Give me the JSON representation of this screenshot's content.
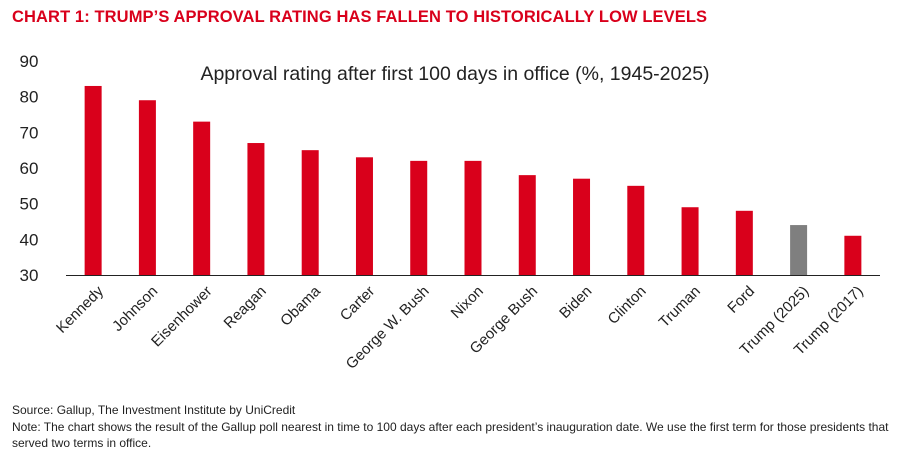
{
  "heading": "CHART 1: TRUMP’S APPROVAL RATING HAS FALLEN TO HISTORICALLY LOW LEVELS",
  "colors": {
    "accent": "#d9001b",
    "highlight": "#7f7f7f",
    "axis": "#222222"
  },
  "chart_data": {
    "type": "bar",
    "title": "Approval rating after first 100 days in office (%, 1945-2025)",
    "xlabel": "",
    "ylabel": "",
    "ylim": [
      30,
      90
    ],
    "yticks": [
      30,
      40,
      50,
      60,
      70,
      80,
      90
    ],
    "grid": false,
    "categories": [
      "Kennedy",
      "Johnson",
      "Eisenhower",
      "Reagan",
      "Obama",
      "Carter",
      "George W. Bush",
      "Nixon",
      "George Bush",
      "Biden",
      "Clinton",
      "Truman",
      "Ford",
      "Trump (2025)",
      "Trump (2017)"
    ],
    "values": [
      83,
      79,
      73,
      67,
      65,
      63,
      62,
      62,
      58,
      57,
      55,
      49,
      48,
      44,
      41
    ],
    "highlighted_category": "Trump (2025)"
  },
  "footer": {
    "source": "Source: Gallup, The Investment Institute by UniCredit",
    "note": "Note: The chart shows the result of the Gallup poll nearest in time to 100 days after each president’s inauguration date. We use the first term for those presidents that served two terms in office."
  }
}
